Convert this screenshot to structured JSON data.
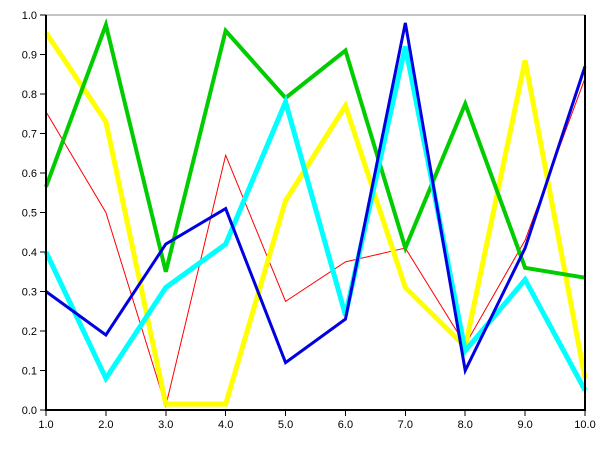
{
  "chart_data": {
    "type": "line",
    "title": "",
    "xlabel": "",
    "ylabel": "",
    "xlim": [
      1,
      10
    ],
    "ylim": [
      0,
      1
    ],
    "grid": false,
    "legend": "none",
    "x_tick_labels": [
      "1.0",
      "2.0",
      "3.0",
      "4.0",
      "5.0",
      "6.0",
      "7.0",
      "8.0",
      "9.0",
      "10.0"
    ],
    "y_tick_labels": [
      "0.0",
      "0.1",
      "0.2",
      "0.3",
      "0.4",
      "0.5",
      "0.6",
      "0.7",
      "0.8",
      "0.9",
      "1.0"
    ],
    "x": [
      1,
      2,
      3,
      4,
      5,
      6,
      7,
      8,
      9,
      10
    ],
    "series": [
      {
        "name": "red",
        "color": "#FF0000",
        "width": 1,
        "values": [
          0.755,
          0.5,
          0.01,
          0.645,
          0.275,
          0.375,
          0.41,
          0.165,
          0.43,
          0.84
        ]
      },
      {
        "name": "yellow",
        "color": "#FFFF00",
        "width": 5,
        "values": [
          0.955,
          0.73,
          0.015,
          0.015,
          0.53,
          0.77,
          0.31,
          0.16,
          0.885,
          0.08
        ]
      },
      {
        "name": "green",
        "color": "#00CC00",
        "width": 4,
        "values": [
          0.565,
          0.975,
          0.35,
          0.96,
          0.79,
          0.91,
          0.41,
          0.775,
          0.36,
          0.335
        ]
      },
      {
        "name": "cyan",
        "color": "#00FFFF",
        "width": 5,
        "values": [
          0.4,
          0.08,
          0.31,
          0.42,
          0.78,
          0.24,
          0.92,
          0.15,
          0.33,
          0.05
        ]
      },
      {
        "name": "blue",
        "color": "#0000E0",
        "width": 3,
        "values": [
          0.3,
          0.19,
          0.42,
          0.51,
          0.12,
          0.23,
          0.98,
          0.1,
          0.41,
          0.87
        ]
      }
    ],
    "frame": {
      "top_color": "#888888",
      "right_color": "#000000",
      "axis_color": "#000000",
      "background": "#FFFFFF"
    }
  }
}
